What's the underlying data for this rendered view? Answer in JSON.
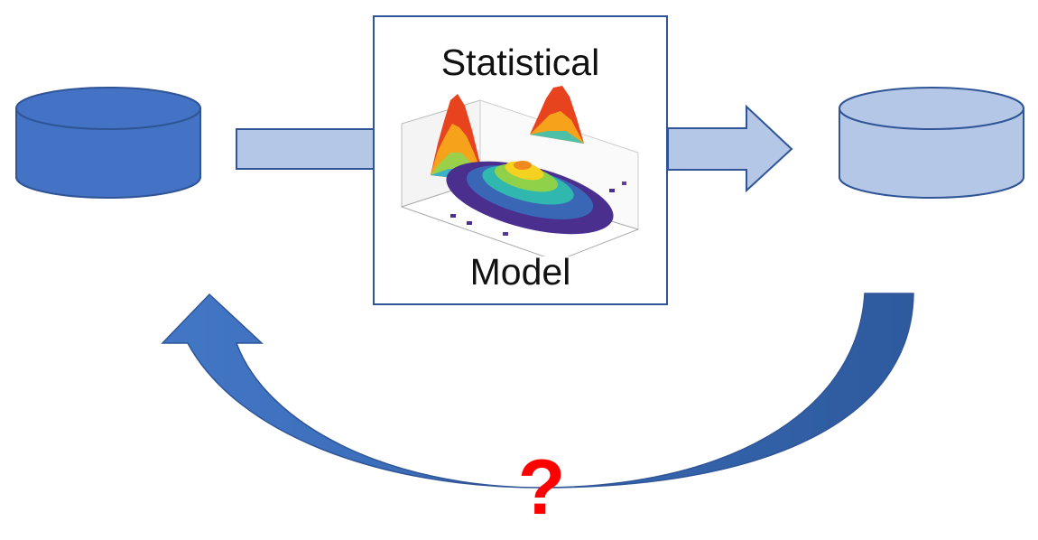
{
  "model": {
    "title": "Statistical",
    "subtitle": "Model"
  },
  "feedback": {
    "symbol": "?"
  },
  "colors": {
    "source_db_fill": "#4472c4",
    "source_db_stroke": "#2f5597",
    "target_db_fill": "#b4c7e7",
    "target_db_stroke": "#2f5597",
    "arrow_fill": "#b4c7e7",
    "curve_arrow_fill": "#3a65b0",
    "question_color": "#ff0000"
  },
  "icons": {
    "source": "database-cylinder-icon",
    "target": "database-cylinder-icon",
    "plot": "3d-histogram-icon"
  }
}
